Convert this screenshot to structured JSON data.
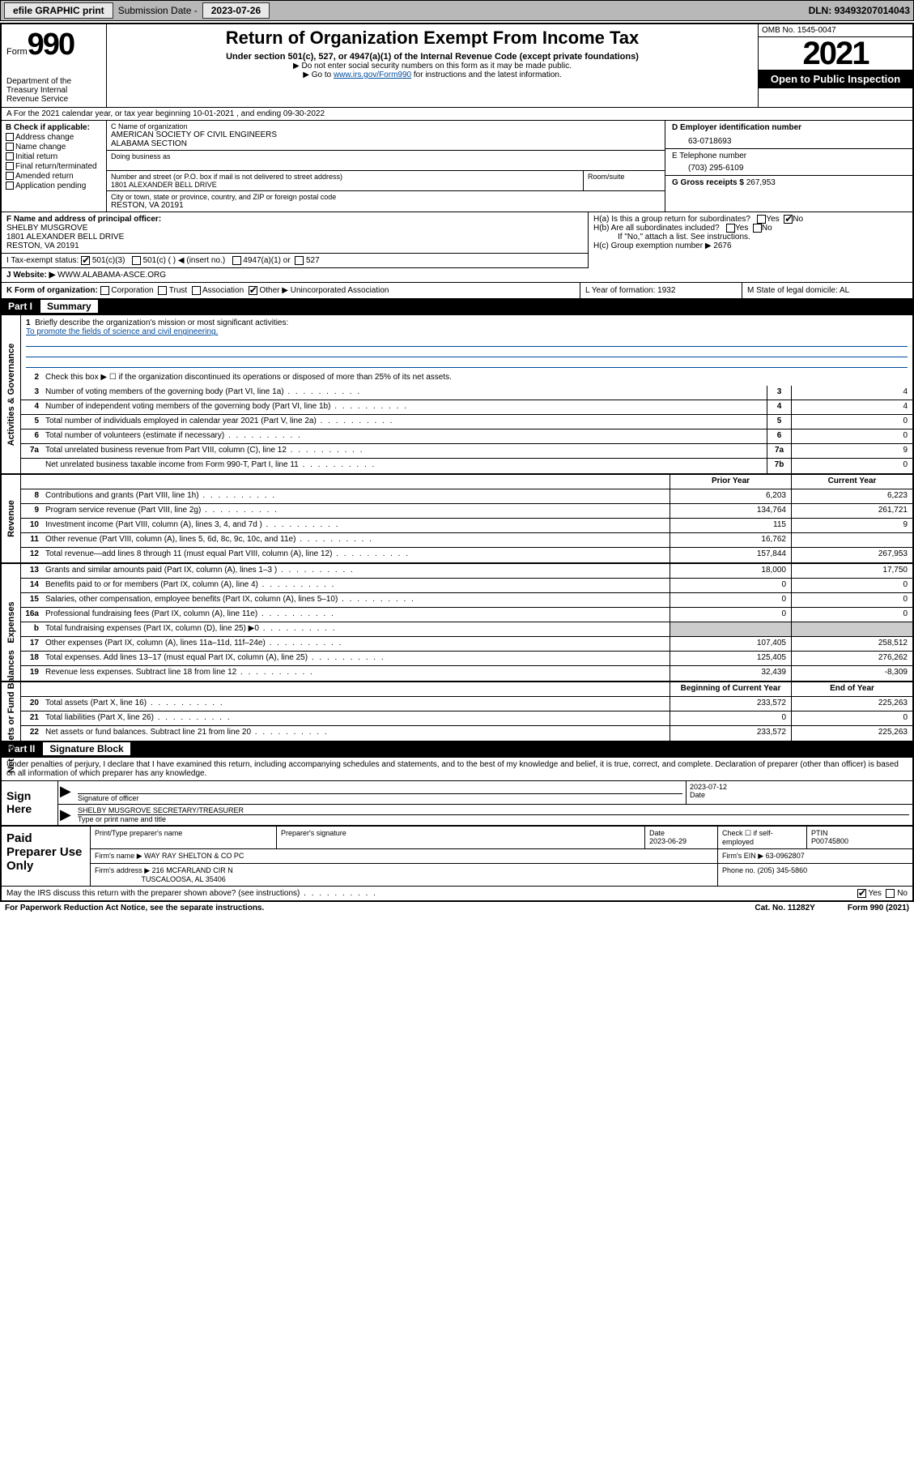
{
  "topbar": {
    "efile": "efile GRAPHIC print",
    "submission_label": "Submission Date - ",
    "submission_date": "2023-07-26",
    "dln_label": "DLN: ",
    "dln": "93493207014043"
  },
  "header": {
    "form_prefix": "Form",
    "form_number": "990",
    "dept": "Department of the Treasury\nInternal Revenue Service",
    "title": "Return of Organization Exempt From Income Tax",
    "subtitle": "Under section 501(c), 527, or 4947(a)(1) of the Internal Revenue Code (except private foundations)",
    "note1": "▶ Do not enter social security numbers on this form as it may be made public.",
    "note2_pre": "▶ Go to ",
    "note2_link": "www.irs.gov/Form990",
    "note2_post": " for instructions and the latest information.",
    "omb": "OMB No. 1545-0047",
    "year": "2021",
    "open": "Open to Public Inspection"
  },
  "row_a": "A For the 2021 calendar year, or tax year beginning 10-01-2021   , and ending 09-30-2022",
  "check_b": {
    "label": "B Check if applicable:",
    "opts": [
      "Address change",
      "Name change",
      "Initial return",
      "Final return/terminated",
      "Amended return",
      "Application pending"
    ]
  },
  "section_c": {
    "name_label": "C Name of organization",
    "name1": "AMERICAN SOCIETY OF CIVIL ENGINEERS",
    "name2": "ALABAMA SECTION",
    "dba_label": "Doing business as",
    "street_label": "Number and street (or P.O. box if mail is not delivered to street address)",
    "room_label": "Room/suite",
    "street": "1801 ALEXANDER BELL DRIVE",
    "city_label": "City or town, state or province, country, and ZIP or foreign postal code",
    "city": "RESTON, VA  20191"
  },
  "section_d": {
    "label": "D Employer identification number",
    "value": "63-0718693"
  },
  "section_e": {
    "label": "E Telephone number",
    "value": "(703) 295-6109"
  },
  "section_g": {
    "label": "G Gross receipts $ ",
    "value": "267,953"
  },
  "section_f": {
    "label": "F Name and address of principal officer:",
    "name": "SHELBY MUSGROVE",
    "addr1": "1801 ALEXANDER BELL DRIVE",
    "addr2": "RESTON, VA  20191"
  },
  "section_h": {
    "ha": "H(a)  Is this a group return for subordinates?",
    "hb": "H(b)  Are all subordinates included?",
    "hb_note": "If \"No,\" attach a list. See instructions.",
    "hc": "H(c)  Group exemption number ▶   2676",
    "yes": "Yes",
    "no": "No"
  },
  "row_i": {
    "label": "I   Tax-exempt status:",
    "o1": "501(c)(3)",
    "o2": "501(c) (  ) ◀ (insert no.)",
    "o3": "4947(a)(1) or",
    "o4": "527"
  },
  "row_j": {
    "label": "J   Website: ▶  ",
    "value": "WWW.ALABAMA-ASCE.ORG"
  },
  "row_k": {
    "k": "K Form of organization:",
    "opts": [
      "Corporation",
      "Trust",
      "Association",
      "Other ▶"
    ],
    "other_val": "Unincorporated Association",
    "l": "L Year of formation: 1932",
    "m": "M State of legal domicile: AL"
  },
  "parts": {
    "p1": "Part I",
    "p1t": "Summary",
    "p2": "Part II",
    "p2t": "Signature Block"
  },
  "summary": {
    "line1_label": "Briefly describe the organization's mission or most significant activities:",
    "line1_text": "To promote the fields of science and civil engineering.",
    "line2": "Check this box ▶ ☐  if the organization discontinued its operations or disposed of more than 25% of its net assets.",
    "rows_single": [
      {
        "n": "3",
        "t": "Number of voting members of the governing body (Part VI, line 1a)",
        "box": "3",
        "v": "4"
      },
      {
        "n": "4",
        "t": "Number of independent voting members of the governing body (Part VI, line 1b)",
        "box": "4",
        "v": "4"
      },
      {
        "n": "5",
        "t": "Total number of individuals employed in calendar year 2021 (Part V, line 2a)",
        "box": "5",
        "v": "0"
      },
      {
        "n": "6",
        "t": "Total number of volunteers (estimate if necessary)",
        "box": "6",
        "v": "0"
      },
      {
        "n": "7a",
        "t": "Total unrelated business revenue from Part VIII, column (C), line 12",
        "box": "7a",
        "v": "9"
      },
      {
        "n": "",
        "t": "Net unrelated business taxable income from Form 990-T, Part I, line 11",
        "box": "7b",
        "v": "0"
      }
    ],
    "col_hdr1": "Prior Year",
    "col_hdr2": "Current Year",
    "revenue": [
      {
        "n": "8",
        "t": "Contributions and grants (Part VIII, line 1h)",
        "v1": "6,203",
        "v2": "6,223"
      },
      {
        "n": "9",
        "t": "Program service revenue (Part VIII, line 2g)",
        "v1": "134,764",
        "v2": "261,721"
      },
      {
        "n": "10",
        "t": "Investment income (Part VIII, column (A), lines 3, 4, and 7d )",
        "v1": "115",
        "v2": "9"
      },
      {
        "n": "11",
        "t": "Other revenue (Part VIII, column (A), lines 5, 6d, 8c, 9c, 10c, and 11e)",
        "v1": "16,762",
        "v2": ""
      },
      {
        "n": "12",
        "t": "Total revenue—add lines 8 through 11 (must equal Part VIII, column (A), line 12)",
        "v1": "157,844",
        "v2": "267,953"
      }
    ],
    "expenses": [
      {
        "n": "13",
        "t": "Grants and similar amounts paid (Part IX, column (A), lines 1–3 )",
        "v1": "18,000",
        "v2": "17,750"
      },
      {
        "n": "14",
        "t": "Benefits paid to or for members (Part IX, column (A), line 4)",
        "v1": "0",
        "v2": "0"
      },
      {
        "n": "15",
        "t": "Salaries, other compensation, employee benefits (Part IX, column (A), lines 5–10)",
        "v1": "0",
        "v2": "0"
      },
      {
        "n": "16a",
        "t": "Professional fundraising fees (Part IX, column (A), line 11e)",
        "v1": "0",
        "v2": "0"
      },
      {
        "n": "b",
        "t": "Total fundraising expenses (Part IX, column (D), line 25) ▶0",
        "v1": "shade",
        "v2": "shade"
      },
      {
        "n": "17",
        "t": "Other expenses (Part IX, column (A), lines 11a–11d, 11f–24e)",
        "v1": "107,405",
        "v2": "258,512"
      },
      {
        "n": "18",
        "t": "Total expenses. Add lines 13–17 (must equal Part IX, column (A), line 25)",
        "v1": "125,405",
        "v2": "276,262"
      },
      {
        "n": "19",
        "t": "Revenue less expenses. Subtract line 18 from line 12",
        "v1": "32,439",
        "v2": "-8,309"
      }
    ],
    "bal_hdr1": "Beginning of Current Year",
    "bal_hdr2": "End of Year",
    "balances": [
      {
        "n": "20",
        "t": "Total assets (Part X, line 16)",
        "v1": "233,572",
        "v2": "225,263"
      },
      {
        "n": "21",
        "t": "Total liabilities (Part X, line 26)",
        "v1": "0",
        "v2": "0"
      },
      {
        "n": "22",
        "t": "Net assets or fund balances. Subtract line 21 from line 20",
        "v1": "233,572",
        "v2": "225,263"
      }
    ],
    "vlabels": {
      "gov": "Activities & Governance",
      "rev": "Revenue",
      "exp": "Expenses",
      "bal": "Net Assets or Fund Balances"
    }
  },
  "sig": {
    "intro": "Under penalties of perjury, I declare that I have examined this return, including accompanying schedules and statements, and to the best of my knowledge and belief, it is true, correct, and complete. Declaration of preparer (other than officer) is based on all information of which preparer has any knowledge.",
    "sign_here": "Sign Here",
    "sig_officer": "Signature of officer",
    "date_lab": "Date",
    "date_val": "2023-07-12",
    "name": "SHELBY MUSGROVE  SECRETARY/TREASURER",
    "name_lab": "Type or print name and title"
  },
  "prep": {
    "title": "Paid Preparer Use Only",
    "h1": "Print/Type preparer's name",
    "h2": "Preparer's signature",
    "h3": "Date",
    "h3v": "2023-06-29",
    "h4": "Check ☐ if self-employed",
    "h5": "PTIN",
    "h5v": "P00745800",
    "firm_name_lab": "Firm's name    ▶",
    "firm_name": "WAY RAY SHELTON & CO PC",
    "firm_ein_lab": "Firm's EIN ▶",
    "firm_ein": "63-0962807",
    "firm_addr_lab": "Firm's address ▶",
    "firm_addr1": "216 MCFARLAND CIR N",
    "firm_addr2": "TUSCALOOSA, AL  35406",
    "phone_lab": "Phone no.",
    "phone": "(205) 345-5860"
  },
  "irs_discuss": {
    "q": "May the IRS discuss this return with the preparer shown above? (see instructions)",
    "yes": "Yes",
    "no": "No"
  },
  "footer": {
    "l": "For Paperwork Reduction Act Notice, see the separate instructions.",
    "m": "Cat. No. 11282Y",
    "r": "Form 990 (2021)"
  }
}
